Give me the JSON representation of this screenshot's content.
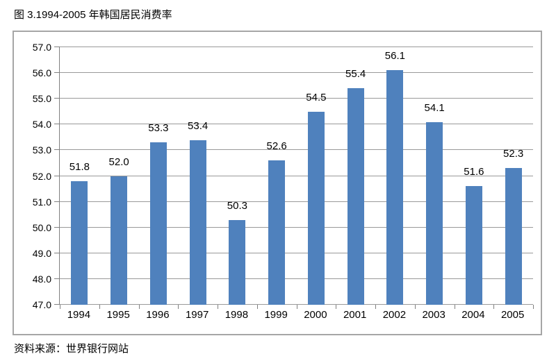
{
  "page": {
    "title": "图 3.1994-2005 年韩国居民消费率",
    "source": "资料来源：世界银行网站"
  },
  "chart_data": {
    "type": "bar",
    "title": "图 3.1994-2005 年韩国居民消费率",
    "source": "资料来源：世界银行网站",
    "categories": [
      "1994",
      "1995",
      "1996",
      "1997",
      "1998",
      "1999",
      "2000",
      "2001",
      "2002",
      "2003",
      "2004",
      "2005"
    ],
    "values": [
      51.8,
      52.0,
      53.3,
      53.4,
      50.3,
      52.6,
      54.5,
      55.4,
      56.1,
      54.1,
      51.6,
      52.3
    ],
    "xlabel": "",
    "ylabel": "",
    "ylim": [
      47.0,
      57.0
    ],
    "ytick_step": 1.0,
    "ytick_decimals": 1,
    "grid": true,
    "legend": "none",
    "data_labels": true,
    "bar_color": "#4F81BD",
    "gridline_color": "#999999",
    "axis_color": "#808080",
    "frame_color": "#a6a6a6"
  }
}
